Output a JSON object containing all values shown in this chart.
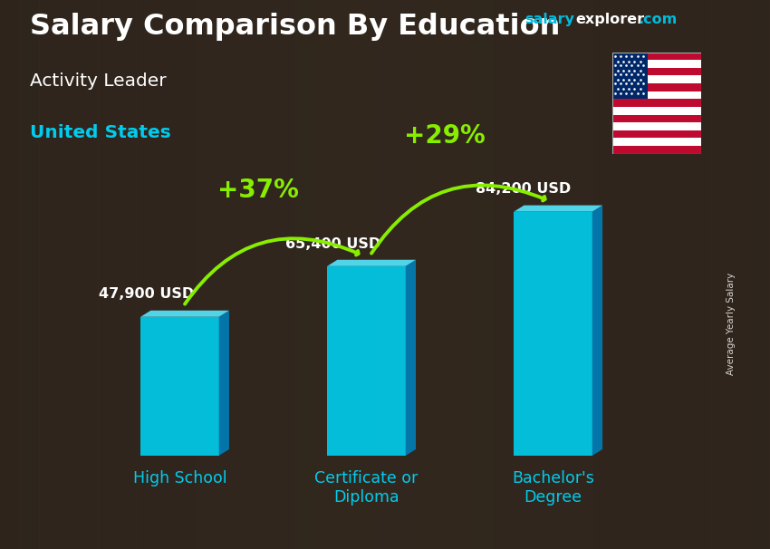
{
  "title_main": "Salary Comparison By Education",
  "title_sub1": "Activity Leader",
  "title_sub2": "United States",
  "ylabel": "Average Yearly Salary",
  "categories": [
    "High School",
    "Certificate or\nDiploma",
    "Bachelor's\nDegree"
  ],
  "values": [
    47900,
    65400,
    84200
  ],
  "value_labels": [
    "47,900 USD",
    "65,400 USD",
    "84,200 USD"
  ],
  "bar_color_front": "#00cfef",
  "bar_color_side": "#007fb8",
  "bar_color_top": "#55e8ff",
  "pct_labels": [
    "+37%",
    "+29%"
  ],
  "pct_color": "#88ee00",
  "text_color_white": "#ffffff",
  "text_color_cyan": "#00ccee",
  "website_salary_color": "#00bbdd",
  "website_explorer_color": "#ffffff",
  "website_com_color": "#00bbdd",
  "bg_color": "#3a3030",
  "bg_overlay": "#1a1010"
}
